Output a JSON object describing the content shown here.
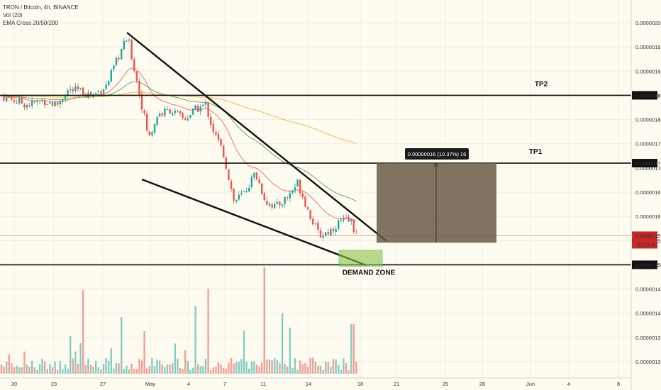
{
  "header": {
    "symbol_line": "TRON / Bitcoin, 4h, BINANCE",
    "volume_line": "Vol (20)",
    "ema_line": "EMA Cross 20/50/200"
  },
  "colors": {
    "background": "#fefbf0",
    "up": "#26a69a",
    "down": "#ef5350",
    "ema20": "#e53935",
    "ema50": "#2e7d32",
    "ema200": "#ff9800",
    "trendline": "#111111",
    "box": "#6b5a45",
    "demand": "#8bc34a",
    "current_tag": "#c62828"
  },
  "chart_data": {
    "type": "candlestick",
    "y_axis": {
      "range": [
        1.26e-06,
        2.03e-06
      ],
      "ticks": [
        "0.00000200",
        "0.00000195",
        "0.00000190",
        "0.00000185",
        "0.00000180",
        "0.00000175",
        "0.00000170",
        "0.00000165",
        "0.00000160",
        "0.00000155",
        "0.00000150",
        "0.00000145",
        "0.00000140",
        "0.00000135",
        "0.00000130"
      ],
      "highlighted": [
        {
          "label": "0.00000185",
          "value": 1.85e-06
        },
        {
          "label": "0.00000171",
          "value": 1.71e-06
        },
        {
          "label": "0.00000150",
          "value": 1.5e-06
        }
      ],
      "current": {
        "label": "0.00000156",
        "value": 1.56e-06,
        "countdown": "02:11:47"
      }
    },
    "x_axis": {
      "labels": [
        "20",
        "23",
        "27",
        "May",
        "4",
        "7",
        "11",
        "14",
        "18",
        "21",
        "25",
        "28",
        "Jun",
        "4",
        "8"
      ]
    },
    "horizontal_lines": [
      {
        "value": 1.85e-06,
        "label": "TP2"
      },
      {
        "value": 1.71e-06,
        "label": "TP1"
      },
      {
        "value": 1.5e-06,
        "label": ""
      }
    ],
    "measure": {
      "label": "0.00000016 (10.37%) 16",
      "from": 1.55e-06,
      "to": 1.71e-06
    },
    "demand_zone": {
      "label": "DEMAND ZONE",
      "top": 1.53e-06,
      "bottom": 1.5e-06
    },
    "series": [
      {
        "name": "Vol (20)"
      },
      {
        "name": "EMA Cross 20/50/200"
      }
    ]
  }
}
